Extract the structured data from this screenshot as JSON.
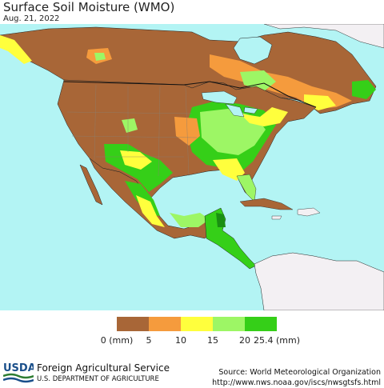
{
  "title": "Surface Soil Moisture (WMO)",
  "date": "Aug. 21, 2022",
  "colors": {
    "ocean": "#b3f4f4",
    "nodata_land": "#f3f0f3",
    "border": "#111111",
    "state_line": "#8c7f70"
  },
  "legend": {
    "colors": [
      "#a86637",
      "#f59b3d",
      "#ffff3d",
      "#9df665",
      "#35cf18"
    ],
    "ticks": [
      "0 (mm)",
      "5",
      "10",
      "15",
      "20",
      "25.4 (mm)"
    ]
  },
  "footer": {
    "logo_text": "USDA",
    "agency": "Foreign Agricultural Service",
    "department": "U.S. DEPARTMENT OF AGRICULTURE",
    "source_line": "Source: World Meteorological Organization",
    "url": "http://www.nws.noaa.gov/iscs/nwsgtsfs.html"
  }
}
